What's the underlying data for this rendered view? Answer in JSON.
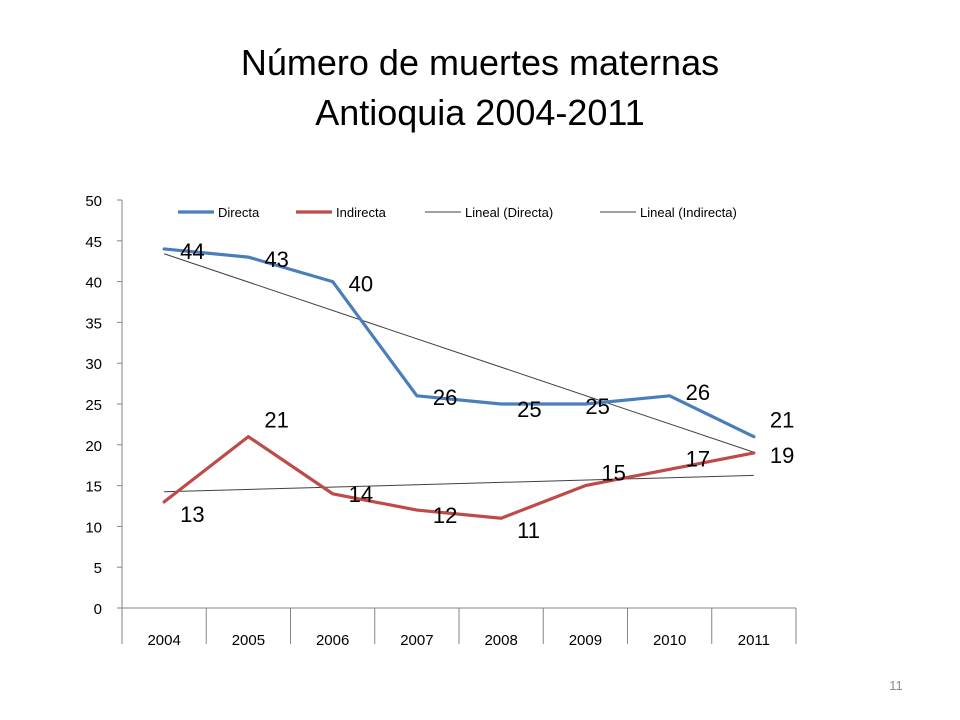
{
  "slide": {
    "title_line1": "Número de muertes maternas",
    "title_line2": "Antioquia 2004-2011",
    "page_number": "11"
  },
  "chart_data": {
    "type": "line",
    "categories": [
      "2004",
      "2005",
      "2006",
      "2007",
      "2008",
      "2009",
      "2010",
      "2011"
    ],
    "series": [
      {
        "name": "Directa",
        "values": [
          44,
          43,
          40,
          26,
          25,
          25,
          26,
          21
        ],
        "color": "#4a7ebb"
      },
      {
        "name": "Indirecta",
        "values": [
          13,
          21,
          14,
          12,
          11,
          15,
          17,
          19
        ],
        "color": "#be4b48"
      }
    ],
    "trendlines": [
      {
        "name": "Lineal (Directa)",
        "of": "Directa",
        "type": "linear",
        "color": "#404040"
      },
      {
        "name": "Lineal (Indirecta)",
        "of": "Indirecta",
        "type": "linear",
        "color": "#404040"
      }
    ],
    "ylim": [
      0,
      50
    ],
    "yticks": [
      0,
      5,
      10,
      15,
      20,
      25,
      30,
      35,
      40,
      45,
      50
    ],
    "legend_position": "top",
    "grid": false,
    "data_labels": true
  }
}
